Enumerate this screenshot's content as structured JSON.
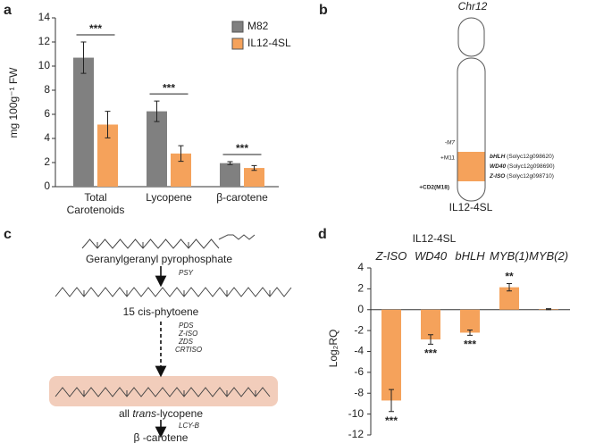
{
  "panel_labels": [
    "a",
    "b",
    "c",
    "d"
  ],
  "chart_data": [
    {
      "type": "bar",
      "ylabel": "mg 100g⁻¹ FW",
      "categories": [
        "Total Carotenoids",
        "Lycopene",
        "β-carotene"
      ],
      "series": [
        {
          "name": "M82",
          "color": "#808080",
          "values": [
            10.7,
            6.25,
            1.95
          ],
          "errors": [
            1.3,
            0.85,
            0.12
          ]
        },
        {
          "name": "IL12-4SL",
          "color": "#f5a25b",
          "values": [
            5.15,
            2.75,
            1.55
          ],
          "errors": [
            1.1,
            0.65,
            0.2
          ]
        }
      ],
      "ylim": [
        0,
        14
      ],
      "yticks": [
        0,
        2,
        4,
        6,
        8,
        10,
        12,
        14
      ],
      "legend": "upper right",
      "annotations": [
        "***",
        "***",
        "***"
      ]
    },
    {
      "type": "bar",
      "title": "IL12-4SL",
      "ylabel": "Log₂RQ",
      "categories": [
        "Z-ISO",
        "WD40",
        "bHLH",
        "MYB(1)",
        "MYB(2)"
      ],
      "values": [
        -8.7,
        -2.85,
        -2.2,
        2.15,
        0.05
      ],
      "errors": [
        1.05,
        0.45,
        0.25,
        0.35,
        0.05
      ],
      "color": "#f5a25b",
      "ylim": [
        -12,
        4
      ],
      "yticks": [
        -12,
        -10,
        -8,
        -6,
        -4,
        -2,
        0,
        2,
        4
      ],
      "category_axis": "top",
      "annotations": [
        "***",
        "***",
        "***",
        "**",
        null
      ]
    }
  ],
  "diagram_b": {
    "title": "Chr12",
    "markers": [
      "-M7",
      "+M11",
      "+CD2(M18)"
    ],
    "genes": [
      {
        "name": "bHLH",
        "id": "(Solyc12g098620)"
      },
      {
        "name": "WD40",
        "id": "(Solyc12g098690)"
      },
      {
        "name": "Z-ISO",
        "id": "(Solyc12g098710)"
      }
    ],
    "line_label": "IL12-4SL"
  },
  "diagram_c": {
    "compounds": [
      "Geranylgeranyl pyrophosphate",
      "15 cis-phytoene"
    ],
    "lycopene": {
      "prefix": "all ",
      "italic": "trans",
      "suffix": "-lycopene"
    },
    "product": "β -carotene",
    "enzymes": [
      "PSY",
      "PDS",
      "Z-ISO",
      "ZDS",
      "CRTISO",
      "LCY-B"
    ]
  }
}
